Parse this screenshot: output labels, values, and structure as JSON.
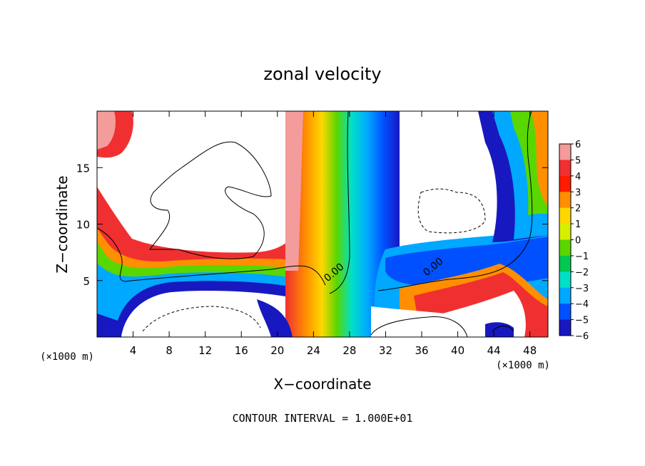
{
  "chart_data": {
    "type": "heatmap",
    "title": "zonal velocity",
    "xlabel": "X−coordinate",
    "ylabel": "Z−coordinate",
    "x_unit_left": "(×1000 m)",
    "x_unit_right": "(×1000 m)",
    "xlim": [
      0,
      50
    ],
    "ylim": [
      0,
      20
    ],
    "x_ticks": [
      4,
      8,
      12,
      16,
      20,
      24,
      28,
      32,
      36,
      40,
      44,
      48
    ],
    "x_tick_labels": [
      "4",
      "8",
      "12",
      "16",
      "20",
      "24",
      "28",
      "32",
      "36",
      "40",
      "44",
      "48"
    ],
    "y_ticks": [
      5,
      10,
      15
    ],
    "y_tick_labels": [
      "5",
      "10",
      "15"
    ],
    "colorbar": {
      "levels": [
        6,
        5,
        4,
        3,
        2,
        1,
        0,
        -1,
        -2,
        -3,
        -4,
        -5,
        -6
      ],
      "labels": [
        "6",
        "5",
        "4",
        "3",
        "2",
        "1",
        "0",
        "−1",
        "−2",
        "−3",
        "−4",
        "−5",
        "−6"
      ],
      "colors": [
        "#f49b9b",
        "#f03030",
        "#ff1b00",
        "#ff8f00",
        "#ffd800",
        "#d6ef00",
        "#5ad600",
        "#00c850",
        "#00e0c8",
        "#00a8ff",
        "#0050ff",
        "#1818c0",
        "#5a10a0"
      ]
    },
    "contour_labels": [
      {
        "text": "0.00",
        "x": 26.5,
        "y": 5.5
      },
      {
        "text": "0.00",
        "x": 37.5,
        "y": 6.0
      }
    ],
    "footer": "CONTOUR INTERVAL = 1.000E+01"
  }
}
